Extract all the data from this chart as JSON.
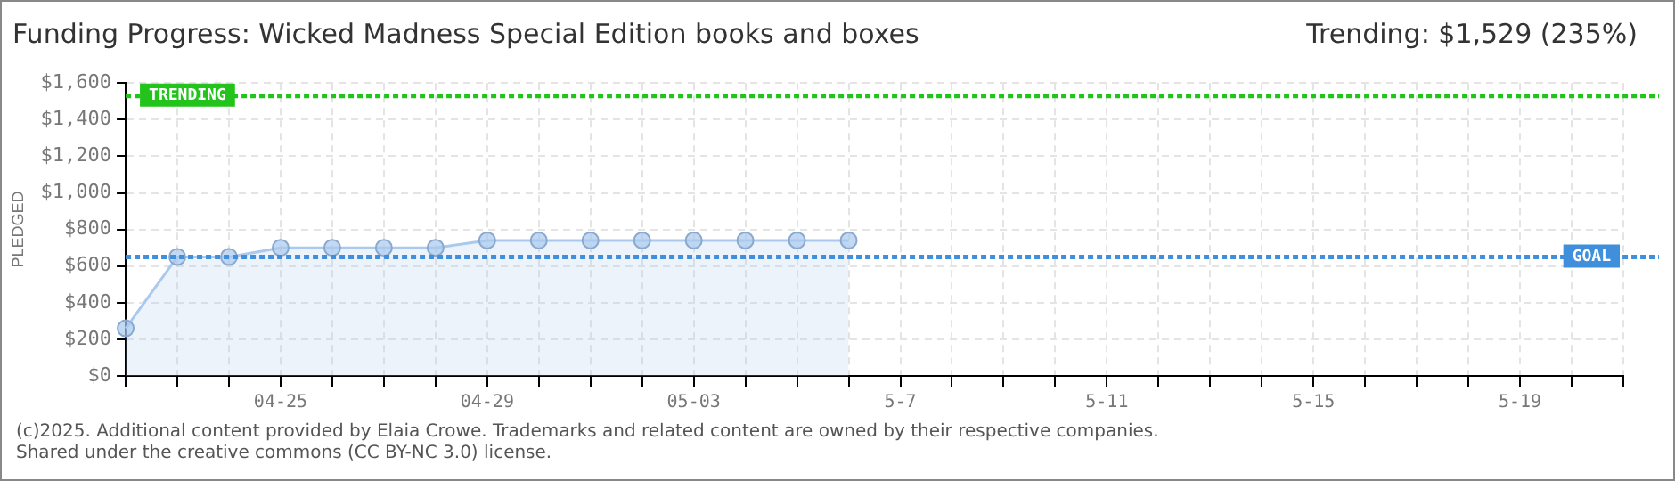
{
  "chart_data": {
    "type": "area",
    "title": "Funding Progress: Wicked Madness Special Edition books and boxes",
    "subtitle": "Trending: $1,529 (235%)",
    "ylabel": "PLEDGED",
    "categories": [
      null,
      null,
      null,
      "04-25",
      null,
      null,
      null,
      "04-29",
      null,
      null,
      null,
      "05-03",
      null,
      null,
      null,
      "5-7",
      null,
      null,
      null,
      "5-11",
      null,
      null,
      null,
      "5-15",
      null,
      null,
      null,
      "5-19",
      null,
      null
    ],
    "series": [
      {
        "color": "#a9c9ee",
        "values": [
          260,
          650,
          650,
          700,
          700,
          700,
          700,
          740,
          740,
          740,
          740,
          740,
          740,
          740,
          740,
          null,
          null,
          null,
          null,
          null,
          null,
          null,
          null,
          null,
          null,
          null,
          null,
          null,
          null,
          null
        ]
      }
    ],
    "ylim": [
      0,
      1600
    ],
    "yticks": [
      {
        "value": 0,
        "label": "$0"
      },
      {
        "value": 200,
        "label": "$200"
      },
      {
        "value": 400,
        "label": "$400"
      },
      {
        "value": 600,
        "label": "$600"
      },
      {
        "value": 800,
        "label": "$800"
      },
      {
        "value": 1000,
        "label": "$1,000"
      },
      {
        "value": 1200,
        "label": "$1,200"
      },
      {
        "value": 1400,
        "label": "$1,400"
      },
      {
        "value": 1600,
        "label": "$1,600"
      }
    ],
    "ref_lines": [
      {
        "axis": "y",
        "value": 1529,
        "label": "TRENDING",
        "color": "#22c31a",
        "line_style": "dotted"
      },
      {
        "axis": "y",
        "value": 650,
        "label": "GOAL",
        "color": "#3f8fdc",
        "line_style": "dotted"
      }
    ],
    "grid": true,
    "marker": "circle",
    "legend": false,
    "annotations": [
      "(c)2025. Additional content provided by Elaia Crowe. Trademarks and related content are owned by their respective companies.",
      "Shared under the creative commons (CC BY-NC 3.0) license."
    ]
  }
}
